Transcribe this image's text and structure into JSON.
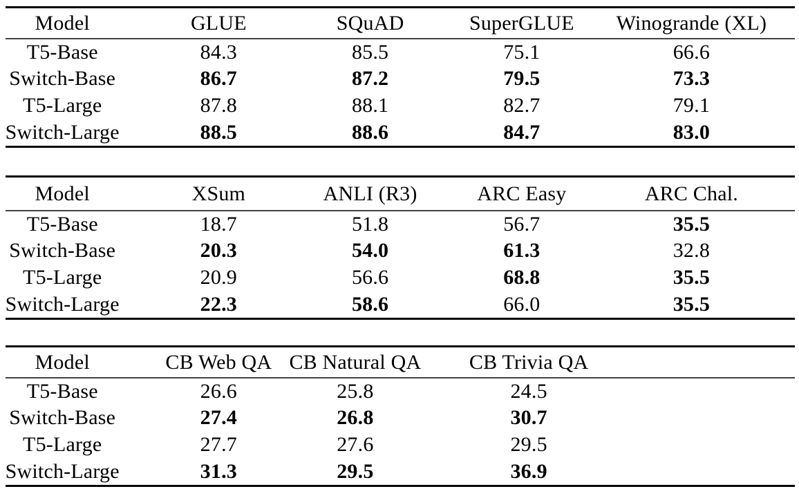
{
  "colors": {
    "background": "#ffffff",
    "text": "#000000",
    "heavy_rule": "#000000",
    "light_rule": "#404040"
  },
  "tables": [
    {
      "columns": [
        "Model",
        "GLUE",
        "SQuAD",
        "SuperGLUE",
        "Winogrande (XL)"
      ],
      "rows": [
        {
          "model": "T5-Base",
          "values": [
            "84.3",
            "85.5",
            "75.1",
            "66.6"
          ],
          "bold": [
            false,
            false,
            false,
            false
          ]
        },
        {
          "model": "Switch-Base",
          "values": [
            "86.7",
            "87.2",
            "79.5",
            "73.3"
          ],
          "bold": [
            true,
            true,
            true,
            true
          ]
        },
        {
          "model": "T5-Large",
          "values": [
            "87.8",
            "88.1",
            "82.7",
            "79.1"
          ],
          "bold": [
            false,
            false,
            false,
            false
          ]
        },
        {
          "model": "Switch-Large",
          "values": [
            "88.5",
            "88.6",
            "84.7",
            "83.0"
          ],
          "bold": [
            true,
            true,
            true,
            true
          ]
        }
      ]
    },
    {
      "columns": [
        "Model",
        "XSum",
        "ANLI (R3)",
        "ARC Easy",
        "ARC Chal."
      ],
      "rows": [
        {
          "model": "T5-Base",
          "values": [
            "18.7",
            "51.8",
            "56.7",
            "35.5"
          ],
          "bold": [
            false,
            false,
            false,
            true
          ]
        },
        {
          "model": "Switch-Base",
          "values": [
            "20.3",
            "54.0",
            "61.3",
            "32.8"
          ],
          "bold": [
            true,
            true,
            true,
            false
          ]
        },
        {
          "model": "T5-Large",
          "values": [
            "20.9",
            "56.6",
            "68.8",
            "35.5"
          ],
          "bold": [
            false,
            false,
            true,
            true
          ]
        },
        {
          "model": "Switch-Large",
          "values": [
            "22.3",
            "58.6",
            "66.0",
            "35.5"
          ],
          "bold": [
            true,
            true,
            false,
            true
          ]
        }
      ]
    },
    {
      "columns": [
        "Model",
        "CB Web QA",
        "CB Natural QA",
        "CB Trivia QA"
      ],
      "rows": [
        {
          "model": "T5-Base",
          "values": [
            "26.6",
            "25.8",
            "24.5"
          ],
          "bold": [
            false,
            false,
            false
          ]
        },
        {
          "model": "Switch-Base",
          "values": [
            "27.4",
            "26.8",
            "30.7"
          ],
          "bold": [
            true,
            true,
            true
          ]
        },
        {
          "model": "T5-Large",
          "values": [
            "27.7",
            "27.6",
            "29.5"
          ],
          "bold": [
            false,
            false,
            false
          ]
        },
        {
          "model": "Switch-Large",
          "values": [
            "31.3",
            "29.5",
            "36.9"
          ],
          "bold": [
            true,
            true,
            true
          ]
        }
      ]
    }
  ]
}
